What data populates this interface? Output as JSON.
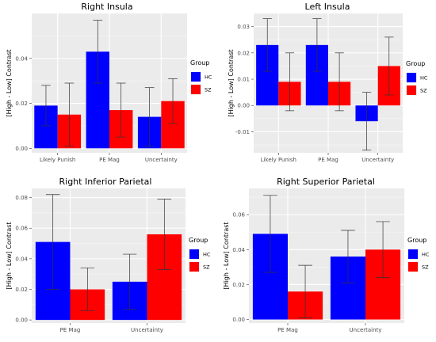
{
  "chart_data": [
    {
      "type": "bar",
      "title": "Right Insula",
      "xlabel": "",
      "ylabel": "[High - Low] Contrast",
      "categories": [
        "Likely Punish",
        "PE Mag",
        "Uncertainty"
      ],
      "ylim": [
        -0.002,
        0.06
      ],
      "yticks": [
        "0.00",
        "0.02",
        "0.04"
      ],
      "legend_title": "Group",
      "series": [
        {
          "name": "HC",
          "color": "#0000ff",
          "values": [
            0.019,
            0.043,
            0.014
          ],
          "error_low": [
            0.01,
            0.029,
            0.001
          ],
          "error_high": [
            0.028,
            0.057,
            0.027
          ]
        },
        {
          "name": "SZ",
          "color": "#ff0000",
          "values": [
            0.015,
            0.017,
            0.021
          ],
          "error_low": [
            0.001,
            0.005,
            0.011
          ],
          "error_high": [
            0.029,
            0.029,
            0.031
          ]
        }
      ]
    },
    {
      "type": "bar",
      "title": "Left Insula",
      "xlabel": "",
      "ylabel": "[High - Low] Contrast",
      "categories": [
        "Likely Punish",
        "PE Mag",
        "Uncertainty"
      ],
      "ylim": [
        -0.018,
        0.035
      ],
      "yticks": [
        "-0.01",
        "0.00",
        "0.01",
        "0.02",
        "0.03"
      ],
      "legend_title": "Group",
      "series": [
        {
          "name": "HC",
          "color": "#0000ff",
          "values": [
            0.023,
            0.023,
            -0.006
          ],
          "error_low": [
            0.013,
            0.013,
            -0.017
          ],
          "error_high": [
            0.033,
            0.033,
            0.005
          ]
        },
        {
          "name": "SZ",
          "color": "#ff0000",
          "values": [
            0.009,
            0.009,
            0.015
          ],
          "error_low": [
            -0.002,
            -0.002,
            0.004
          ],
          "error_high": [
            0.02,
            0.02,
            0.026
          ]
        }
      ]
    },
    {
      "type": "bar",
      "title": "Right Inferior Parietal",
      "xlabel": "",
      "ylabel": "[High - Low] Contrast",
      "categories": [
        "PE Mag",
        "Uncertainty"
      ],
      "ylim": [
        -0.002,
        0.086
      ],
      "yticks": [
        "0.00",
        "0.02",
        "0.04",
        "0.06",
        "0.08"
      ],
      "legend_title": "Group",
      "series": [
        {
          "name": "HC",
          "color": "#0000ff",
          "values": [
            0.051,
            0.025
          ],
          "error_low": [
            0.02,
            0.007
          ],
          "error_high": [
            0.082,
            0.043
          ]
        },
        {
          "name": "SZ",
          "color": "#ff0000",
          "values": [
            0.02,
            0.056
          ],
          "error_low": [
            0.006,
            0.033
          ],
          "error_high": [
            0.034,
            0.079
          ]
        }
      ]
    },
    {
      "type": "bar",
      "title": "Right Superior Parietal",
      "xlabel": "",
      "ylabel": "[High - Low] Contrast",
      "categories": [
        "PE Mag",
        "Uncertainty"
      ],
      "ylim": [
        -0.002,
        0.075
      ],
      "yticks": [
        "0.00",
        "0.02",
        "0.04",
        "0.06"
      ],
      "legend_title": "Group",
      "series": [
        {
          "name": "HC",
          "color": "#0000ff",
          "values": [
            0.049,
            0.036
          ],
          "error_low": [
            0.027,
            0.021
          ],
          "error_high": [
            0.071,
            0.051
          ]
        },
        {
          "name": "SZ",
          "color": "#ff0000",
          "values": [
            0.016,
            0.04
          ],
          "error_low": [
            0.001,
            0.024
          ],
          "error_high": [
            0.031,
            0.056
          ]
        }
      ]
    }
  ]
}
